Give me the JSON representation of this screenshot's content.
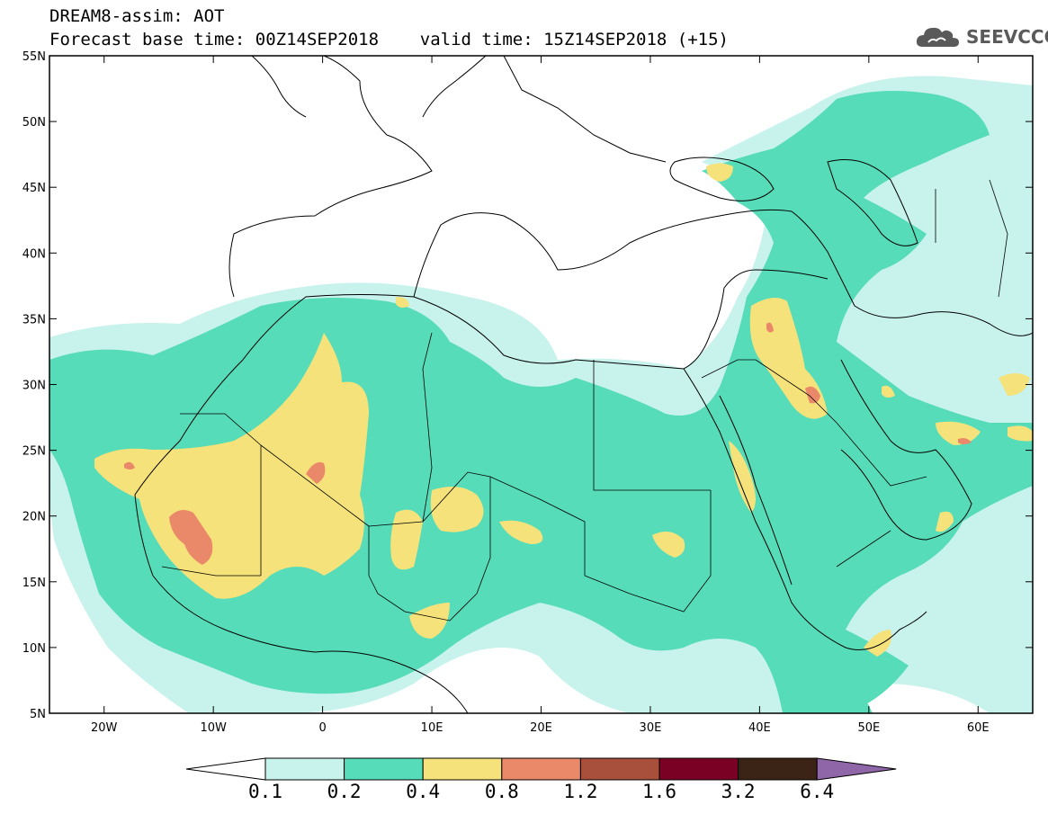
{
  "header": {
    "line1": "DREAM8-assim: AOT",
    "line2": "Forecast base time: 00Z14SEP2018    valid time: 15Z14SEP2018 (+15)"
  },
  "logo": {
    "text": "SEEVCCC",
    "icon": "cloud-icon"
  },
  "map": {
    "lon_range": [
      -25,
      65
    ],
    "lat_range": [
      5,
      55
    ],
    "lat_labels": [
      "55N",
      "50N",
      "45N",
      "40N",
      "35N",
      "30N",
      "25N",
      "20N",
      "15N",
      "10N",
      "5N"
    ],
    "lon_labels": [
      "20W",
      "10W",
      "0",
      "10E",
      "20E",
      "30E",
      "40E",
      "50E",
      "60E"
    ]
  },
  "colorbar": {
    "colors": [
      "#ffffff",
      "#c8f2ec",
      "#56dcb8",
      "#f6e27a",
      "#e9896a",
      "#a9503d",
      "#7a0024",
      "#3b2416",
      "#8f66a8"
    ],
    "labels": [
      "0.1",
      "0.2",
      "0.4",
      "0.8",
      "1.2",
      "1.6",
      "3.2",
      "6.4"
    ]
  }
}
